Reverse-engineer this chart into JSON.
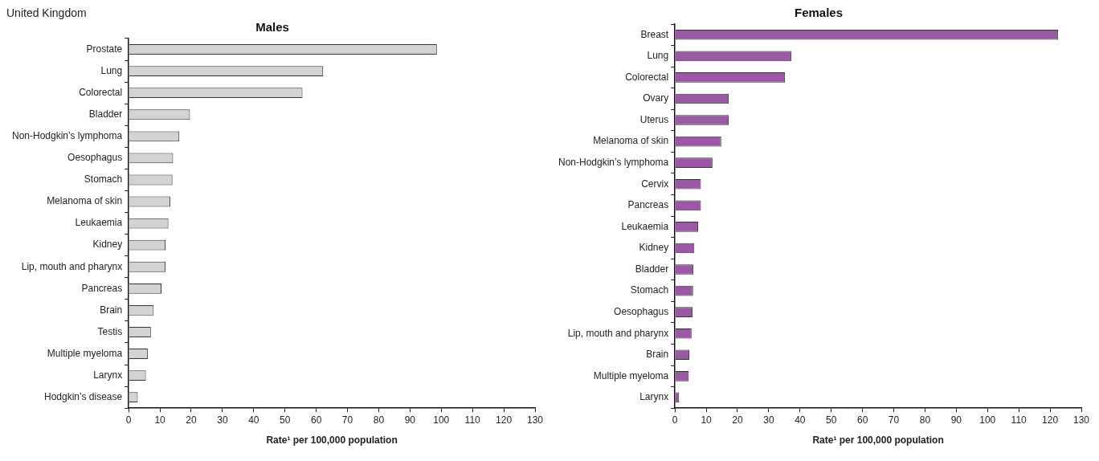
{
  "chart_data": [
    {
      "type": "bar",
      "orientation": "horizontal",
      "subtitle": "United Kingdom",
      "title": "Males",
      "xlabel": "Rate¹ per 100,000 population",
      "categories": [
        "Prostate",
        "Lung",
        "Colorectal",
        "Bladder",
        "Non-Hodgkin’s lymphoma",
        "Oesophagus",
        "Stomach",
        "Melanoma of skin",
        "Leukaemia",
        "Kidney",
        "Lip, mouth and pharynx",
        "Pancreas",
        "Brain",
        "Testis",
        "Multiple myeloma",
        "Larynx",
        "Hodgkin’s disease"
      ],
      "values": [
        98.6,
        62.2,
        55.6,
        19.6,
        16.2,
        14.2,
        14.0,
        13.3,
        12.7,
        11.8,
        11.8,
        10.5,
        8.0,
        7.1,
        6.1,
        5.5,
        2.9
      ],
      "color": "#d3d3d3",
      "xlim": [
        0,
        130
      ],
      "xticks": [
        0,
        10,
        20,
        30,
        40,
        50,
        60,
        70,
        80,
        90,
        100,
        110,
        120,
        130
      ]
    },
    {
      "type": "bar",
      "orientation": "horizontal",
      "title": "Females",
      "xlabel": "Rate¹ per 100,000 population",
      "categories": [
        "Breast",
        "Lung",
        "Colorectal",
        "Ovary",
        "Uterus",
        "Melanoma of skin",
        "Non-Hodgkin’s lymphoma",
        "Cervix",
        "Pancreas",
        "Leukaemia",
        "Kidney",
        "Bladder",
        "Stomach",
        "Oesophagus",
        "Lip, mouth and pharynx",
        "Brain",
        "Multiple myeloma",
        "Larynx"
      ],
      "values": [
        122.6,
        37.2,
        35.2,
        17.2,
        17.2,
        14.8,
        12.0,
        8.3,
        8.3,
        7.4,
        6.2,
        5.9,
        5.8,
        5.6,
        5.3,
        4.6,
        4.4,
        1.3
      ],
      "color": "#9b59a5",
      "xlim": [
        0,
        130
      ],
      "xticks": [
        0,
        10,
        20,
        30,
        40,
        50,
        60,
        70,
        80,
        90,
        100,
        110,
        120,
        130
      ]
    }
  ]
}
